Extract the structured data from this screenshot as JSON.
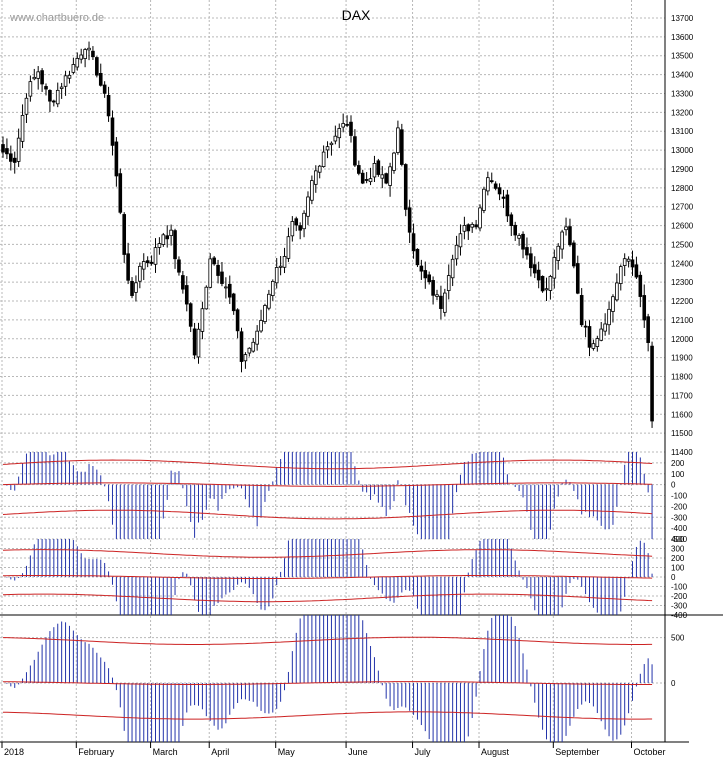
{
  "watermark": "www.chartbuero.de",
  "chart_data": {
    "type": "candlestick",
    "title": "DAX",
    "ylim": [
      11400,
      13700
    ],
    "yticks": [
      11400,
      11500,
      11600,
      11700,
      11800,
      11900,
      12000,
      12100,
      12200,
      12300,
      12400,
      12500,
      12600,
      12700,
      12800,
      12900,
      13000,
      13100,
      13200,
      13300,
      13400,
      13500,
      13600,
      13700
    ],
    "months": [
      "2018",
      "February",
      "March",
      "April",
      "May",
      "June",
      "July",
      "August",
      "September",
      "October"
    ],
    "close_keypoints": [
      [
        0,
        12990
      ],
      [
        3,
        12950
      ],
      [
        6,
        13300
      ],
      [
        9,
        13420
      ],
      [
        12,
        13250
      ],
      [
        15,
        13350
      ],
      [
        18,
        13450
      ],
      [
        21,
        13560
      ],
      [
        24,
        13420
      ],
      [
        27,
        13200
      ],
      [
        29,
        12860
      ],
      [
        31,
        12460
      ],
      [
        33,
        12200
      ],
      [
        35,
        12400
      ],
      [
        38,
        12420
      ],
      [
        41,
        12560
      ],
      [
        43,
        12550
      ],
      [
        45,
        12330
      ],
      [
        47,
        12200
      ],
      [
        49,
        11920
      ],
      [
        51,
        12150
      ],
      [
        53,
        12440
      ],
      [
        55,
        12360
      ],
      [
        57,
        12280
      ],
      [
        59,
        12140
      ],
      [
        61,
        11890
      ],
      [
        63,
        11950
      ],
      [
        65,
        12020
      ],
      [
        67,
        12180
      ],
      [
        69,
        12320
      ],
      [
        72,
        12450
      ],
      [
        74,
        12600
      ],
      [
        76,
        12550
      ],
      [
        79,
        12830
      ],
      [
        82,
        13000
      ],
      [
        85,
        13080
      ],
      [
        88,
        13150
      ],
      [
        90,
        12950
      ],
      [
        92,
        12820
      ],
      [
        95,
        12900
      ],
      [
        98,
        12820
      ],
      [
        101,
        13100
      ],
      [
        103,
        12700
      ],
      [
        106,
        12380
      ],
      [
        109,
        12280
      ],
      [
        112,
        12180
      ],
      [
        115,
        12450
      ],
      [
        118,
        12580
      ],
      [
        121,
        12620
      ],
      [
        124,
        12880
      ],
      [
        127,
        12780
      ],
      [
        130,
        12620
      ],
      [
        133,
        12500
      ],
      [
        136,
        12350
      ],
      [
        139,
        12250
      ],
      [
        142,
        12500
      ],
      [
        144,
        12580
      ],
      [
        146,
        12400
      ],
      [
        148,
        12100
      ],
      [
        150,
        11980
      ],
      [
        152,
        12020
      ],
      [
        155,
        12150
      ],
      [
        158,
        12380
      ],
      [
        160,
        12420
      ],
      [
        162,
        12350
      ],
      [
        163,
        12200
      ],
      [
        165,
        11980
      ],
      [
        166,
        11540
      ]
    ],
    "indicators": [
      {
        "yticks": [
          200,
          100,
          0,
          -100,
          -200,
          -300,
          -400,
          -500
        ],
        "range": [
          -500,
          300
        ]
      },
      {
        "yticks": [
          400,
          300,
          200,
          100,
          0,
          -100,
          -200,
          -300,
          -400
        ],
        "range": [
          -400,
          400
        ]
      },
      {
        "yticks": [
          500,
          0
        ],
        "range": [
          -650,
          750
        ]
      }
    ]
  }
}
